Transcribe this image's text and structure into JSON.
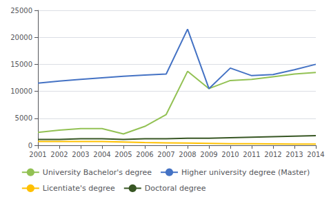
{
  "chart_data": {
    "type": "line",
    "x": [
      2001,
      2002,
      2003,
      2004,
      2005,
      2006,
      2007,
      2008,
      2009,
      2010,
      2011,
      2012,
      2013,
      2014
    ],
    "series": [
      {
        "name": "University Bachelor's degree",
        "color": "#92c153",
        "values": [
          2400,
          2800,
          3100,
          3100,
          2100,
          3500,
          5700,
          13700,
          10500,
          12000,
          12200,
          12700,
          13200,
          13500
        ]
      },
      {
        "name": "Higher university degree (Master)",
        "color": "#4472c4",
        "values": [
          11500,
          11900,
          12200,
          12500,
          12800,
          13000,
          13200,
          21500,
          10500,
          14300,
          12900,
          13100,
          14000,
          15000
        ]
      },
      {
        "name": "Licentiate's degree",
        "color": "#ffc000",
        "values": [
          700,
          700,
          700,
          700,
          600,
          500,
          450,
          400,
          350,
          300,
          280,
          250,
          230,
          220
        ]
      },
      {
        "name": "Doctoral degree",
        "color": "#375623",
        "values": [
          1100,
          1100,
          1200,
          1200,
          1100,
          1200,
          1200,
          1300,
          1300,
          1400,
          1500,
          1600,
          1700,
          1800
        ]
      }
    ],
    "xlim": [
      2001,
      2014
    ],
    "xticks": [
      2001,
      2002,
      2003,
      2004,
      2005,
      2006,
      2007,
      2008,
      2009,
      2010,
      2011,
      2012,
      2013,
      2014
    ],
    "ylim": [
      0,
      25000
    ],
    "yticks": [
      0,
      5000,
      10000,
      15000,
      20000,
      25000
    ],
    "grid": true,
    "legend": "bottom"
  }
}
